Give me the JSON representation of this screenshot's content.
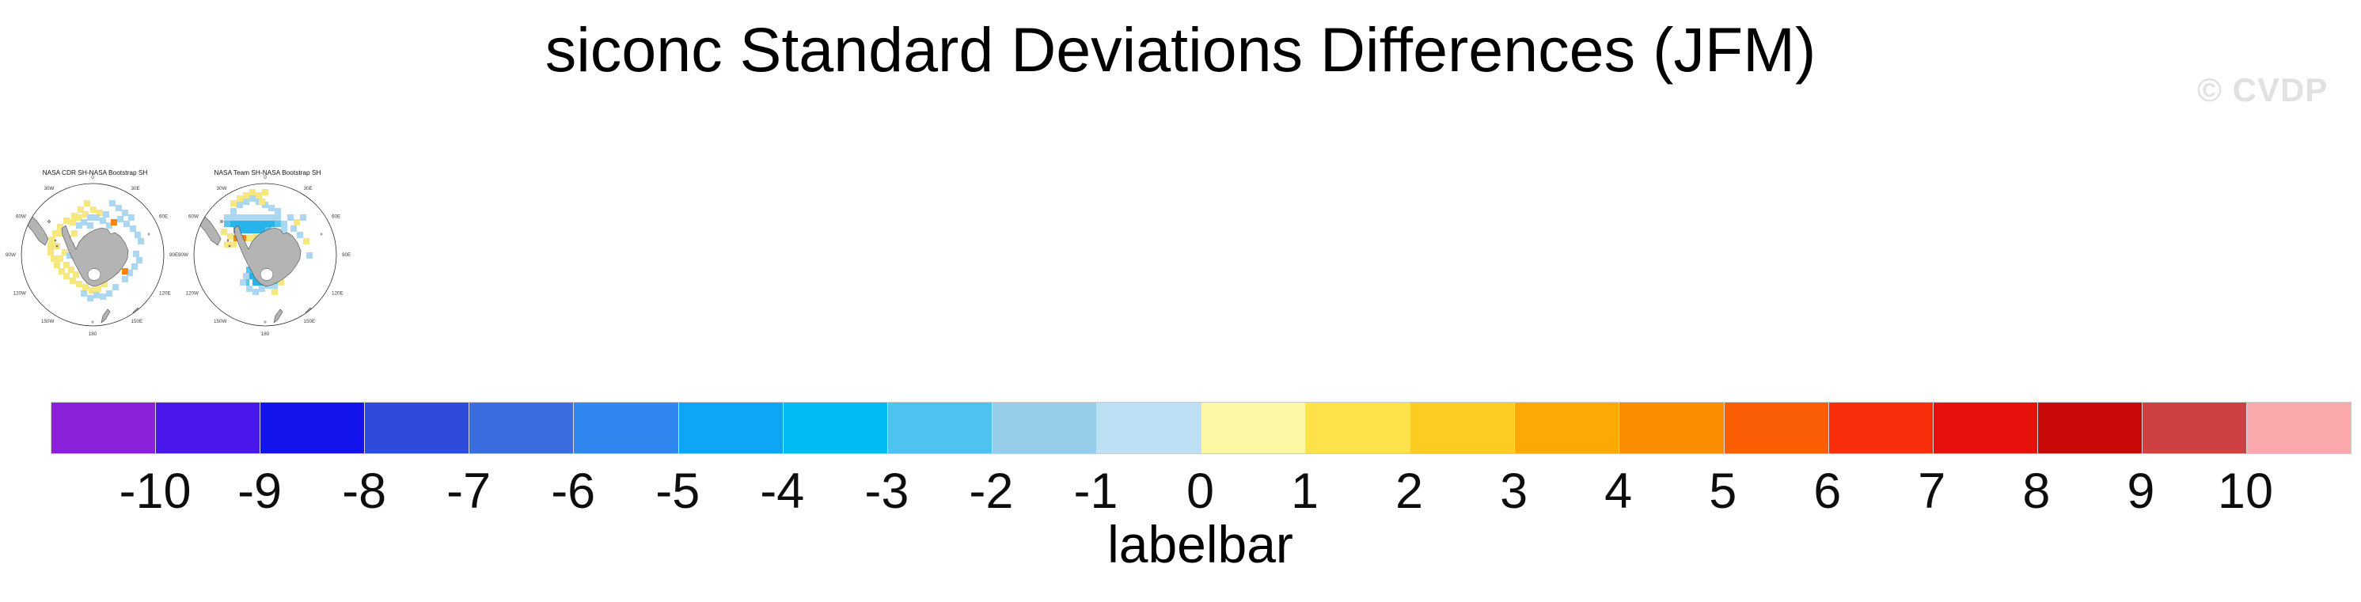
{
  "figure": {
    "title": "siconc Standard Deviations Differences (JFM)",
    "watermark": "© CVDP",
    "variable": "siconc",
    "season": "JFM"
  },
  "panels": [
    {
      "title": "NASA CDR SH-NASA Bootstrap SH",
      "cells": [
        [
          104,
          46,
          "y"
        ],
        [
          96,
          54,
          "y"
        ],
        [
          112,
          54,
          "y"
        ],
        [
          88,
          62,
          "y"
        ],
        [
          120,
          58,
          "y"
        ],
        [
          78,
          68,
          "y"
        ],
        [
          70,
          76,
          "y"
        ],
        [
          64,
          84,
          "y"
        ],
        [
          60,
          92,
          "y"
        ],
        [
          58,
          100,
          "y"
        ],
        [
          58,
          108,
          "y"
        ],
        [
          62,
          116,
          "y"
        ],
        [
          66,
          124,
          "y"
        ],
        [
          72,
          132,
          "y"
        ],
        [
          78,
          138,
          "y"
        ],
        [
          86,
          144,
          "y"
        ],
        [
          94,
          148,
          "y"
        ],
        [
          102,
          152,
          "y"
        ],
        [
          72,
          84,
          "y"
        ],
        [
          66,
          100,
          "y"
        ],
        [
          70,
          116,
          "y"
        ],
        [
          78,
          124,
          "y"
        ],
        [
          84,
          130,
          "y"
        ],
        [
          80,
          90,
          "y"
        ],
        [
          110,
          156,
          "y"
        ],
        [
          118,
          154,
          "y"
        ],
        [
          126,
          148,
          "y"
        ],
        [
          90,
          136,
          "y"
        ],
        [
          76,
          108,
          "y"
        ],
        [
          102,
          60,
          "y"
        ],
        [
          94,
          64,
          "y"
        ],
        [
          86,
          70,
          "y"
        ],
        [
          100,
          134,
          "y"
        ],
        [
          88,
          84,
          "y"
        ],
        [
          136,
          46,
          "b"
        ],
        [
          144,
          52,
          "b"
        ],
        [
          152,
          58,
          "b"
        ],
        [
          160,
          64,
          "b"
        ],
        [
          146,
          66,
          "b"
        ],
        [
          154,
          72,
          "b"
        ],
        [
          162,
          78,
          "b"
        ],
        [
          168,
          86,
          "b"
        ],
        [
          108,
          64,
          "b"
        ],
        [
          116,
          64,
          "b"
        ],
        [
          124,
          68,
          "b"
        ],
        [
          100,
          70,
          "b"
        ],
        [
          108,
          74,
          "b"
        ],
        [
          132,
          74,
          "b"
        ],
        [
          166,
          110,
          "b"
        ],
        [
          170,
          118,
          "b"
        ],
        [
          164,
          126,
          "b"
        ],
        [
          158,
          134,
          "b"
        ],
        [
          152,
          142,
          "b"
        ],
        [
          116,
          162,
          "b"
        ],
        [
          124,
          164,
          "b"
        ],
        [
          132,
          160,
          "b"
        ],
        [
          108,
          166,
          "b"
        ],
        [
          100,
          160,
          "b"
        ],
        [
          140,
          152,
          "b"
        ],
        [
          84,
          100,
          "b"
        ],
        [
          82,
          112,
          "b"
        ],
        [
          172,
          94,
          "b"
        ],
        [
          94,
          74,
          "b"
        ],
        [
          128,
          60,
          "b"
        ],
        [
          138,
          70,
          "o"
        ],
        [
          152,
          132,
          "o"
        ]
      ]
    },
    {
      "title": "NASA Team SH-NASA Bootstrap SH",
      "cells": [
        [
          71,
          72,
          "d"
        ],
        [
          79,
          72,
          "d"
        ],
        [
          87,
          72,
          "d"
        ],
        [
          95,
          72,
          "d"
        ],
        [
          103,
          72,
          "d"
        ],
        [
          111,
          72,
          "d"
        ],
        [
          119,
          72,
          "d"
        ],
        [
          75,
          80,
          "d"
        ],
        [
          83,
          80,
          "d"
        ],
        [
          91,
          80,
          "d"
        ],
        [
          99,
          80,
          "d"
        ],
        [
          107,
          80,
          "d"
        ],
        [
          95,
          138,
          "d"
        ],
        [
          103,
          138,
          "d"
        ],
        [
          111,
          138,
          "d"
        ],
        [
          119,
          138,
          "d"
        ],
        [
          127,
          138,
          "d"
        ],
        [
          99,
          146,
          "d"
        ],
        [
          107,
          146,
          "d"
        ],
        [
          115,
          146,
          "d"
        ],
        [
          63,
          72,
          "c"
        ],
        [
          127,
          72,
          "c"
        ],
        [
          115,
          80,
          "c"
        ],
        [
          87,
          146,
          "c"
        ],
        [
          123,
          146,
          "c"
        ],
        [
          91,
          130,
          "c"
        ],
        [
          79,
          64,
          "b"
        ],
        [
          87,
          64,
          "b"
        ],
        [
          95,
          64,
          "b"
        ],
        [
          103,
          64,
          "b"
        ],
        [
          111,
          64,
          "b"
        ],
        [
          119,
          64,
          "b"
        ],
        [
          127,
          64,
          "b"
        ],
        [
          71,
          64,
          "b"
        ],
        [
          135,
          72,
          "b"
        ],
        [
          135,
          80,
          "b"
        ],
        [
          63,
          64,
          "b"
        ],
        [
          87,
          44,
          "b"
        ],
        [
          95,
          40,
          "b"
        ],
        [
          103,
          44,
          "b"
        ],
        [
          111,
          48,
          "b"
        ],
        [
          119,
          52,
          "b"
        ],
        [
          127,
          56,
          "b"
        ],
        [
          79,
          48,
          "b"
        ],
        [
          71,
          56,
          "b"
        ],
        [
          143,
          64,
          "b"
        ],
        [
          139,
          88,
          "b"
        ],
        [
          143,
          96,
          "b"
        ],
        [
          139,
          106,
          "b"
        ],
        [
          131,
          114,
          "b"
        ],
        [
          147,
          78,
          "b"
        ],
        [
          155,
          86,
          "b"
        ],
        [
          147,
          118,
          "b"
        ],
        [
          91,
          154,
          "b"
        ],
        [
          99,
          158,
          "b"
        ],
        [
          107,
          154,
          "b"
        ],
        [
          115,
          150,
          "b"
        ],
        [
          123,
          152,
          "b"
        ],
        [
          83,
          146,
          "b"
        ],
        [
          87,
          138,
          "b"
        ],
        [
          167,
          112,
          "b"
        ],
        [
          159,
          64,
          "b"
        ],
        [
          135,
          130,
          "b"
        ],
        [
          131,
          122,
          "b"
        ],
        [
          87,
          36,
          "y"
        ],
        [
          95,
          32,
          "y"
        ],
        [
          79,
          40,
          "y"
        ],
        [
          103,
          36,
          "y"
        ],
        [
          71,
          46,
          "y"
        ],
        [
          111,
          32,
          "y"
        ],
        [
          67,
          88,
          "y"
        ],
        [
          91,
          90,
          "y"
        ],
        [
          99,
          88,
          "y"
        ],
        [
          63,
          98,
          "y"
        ],
        [
          71,
          98,
          "y"
        ],
        [
          59,
          82,
          "y"
        ],
        [
          151,
          70,
          "y"
        ],
        [
          163,
          94,
          "y"
        ],
        [
          131,
          146,
          "y"
        ],
        [
          123,
          158,
          "y"
        ],
        [
          139,
          130,
          "y"
        ],
        [
          107,
          44,
          "y"
        ],
        [
          75,
          90,
          "o"
        ],
        [
          83,
          90,
          "o"
        ]
      ]
    }
  ],
  "map_style": {
    "panel_lefts": [
      2,
      220
    ],
    "land_color": "#b4b4b4",
    "coast_color": "#4a4a4a",
    "circle_color": "#2b2b2b",
    "grid_mark_color": "#555555",
    "meridian_labels": [
      "0",
      "30E",
      "60E",
      "90E",
      "120E",
      "150E",
      "180",
      "150W",
      "120W",
      "90W",
      "60W",
      "30W"
    ],
    "meridian_degrees": [
      0,
      30,
      60,
      90,
      120,
      150,
      180,
      210,
      240,
      270,
      300,
      330
    ],
    "patch_palette": {
      "y": "#F7E77F",
      "b": "#ABD7F2",
      "c": "#58C5F0",
      "d": "#29B3EC",
      "o": "#F8860D"
    }
  },
  "colorbar": {
    "title": "labelbar",
    "tick_labels": [
      "-10",
      "-9",
      "-8",
      "-7",
      "-6",
      "-5",
      "-4",
      "-3",
      "-2",
      "-1",
      "0",
      "1",
      "2",
      "3",
      "4",
      "5",
      "6",
      "7",
      "8",
      "9",
      "10"
    ],
    "cell_colors": [
      "#8B21DB",
      "#4917EC",
      "#1313EE",
      "#2E4BDC",
      "#3B6CE0",
      "#2F87EF",
      "#0FA5F7",
      "#00BCF2",
      "#4EC2F0",
      "#96CDE9",
      "#BEE0F4",
      "#FCF8A4",
      "#FDE24B",
      "#FDCB22",
      "#FCA805",
      "#FB8D00",
      "#FA5D03",
      "#F92D0A",
      "#E8100B",
      "#C70909",
      "#CD4143",
      "#FBA9AC"
    ]
  },
  "chart_data": {
    "type": "heatmap",
    "subtype": "south_polar_stereographic_difference_map_pair",
    "title": "siconc Standard Deviations Differences (JFM)",
    "panel_titles": [
      "NASA CDR SH-NASA Bootstrap SH",
      "NASA Team SH-NASA Bootstrap SH"
    ],
    "projection": "south polar stereographic (Antarctica centered)",
    "legend": {
      "title": "labelbar",
      "orientation": "horizontal",
      "position": "bottom",
      "levels": [
        -10,
        -9,
        -8,
        -7,
        -6,
        -5,
        -4,
        -3,
        -2,
        -1,
        0,
        1,
        2,
        3,
        4,
        5,
        6,
        7,
        8,
        9,
        10
      ],
      "n_color_boxes": 22,
      "colors": [
        "#8B21DB",
        "#4917EC",
        "#1313EE",
        "#2E4BDC",
        "#3B6CE0",
        "#2F87EF",
        "#0FA5F7",
        "#00BCF2",
        "#4EC2F0",
        "#96CDE9",
        "#BEE0F4",
        "#FCF8A4",
        "#FDE24B",
        "#FDCB22",
        "#FCA805",
        "#FB8D00",
        "#FA5D03",
        "#F92D0A",
        "#E8100B",
        "#C70909",
        "#CD4143",
        "#FBA9AC"
      ]
    },
    "value_interpretation": "blues = negative differences, yellows/oranges/reds = positive differences; gray = land; patches cover the Southern Ocean sea-ice zone around Antarctica"
  }
}
